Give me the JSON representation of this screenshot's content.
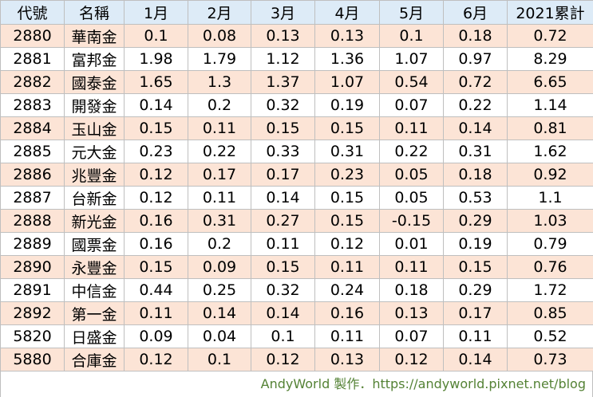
{
  "table": {
    "header": [
      "代號",
      "名稱",
      "1月",
      "2月",
      "3月",
      "4月",
      "5月",
      "6月",
      "2021累計"
    ],
    "rows": [
      [
        "2880",
        "華南金",
        "0.1",
        "0.08",
        "0.13",
        "0.13",
        "0.1",
        "0.18",
        "0.72"
      ],
      [
        "2881",
        "富邦金",
        "1.98",
        "1.79",
        "1.12",
        "1.36",
        "1.07",
        "0.97",
        "8.29"
      ],
      [
        "2882",
        "國泰金",
        "1.65",
        "1.3",
        "1.37",
        "1.07",
        "0.54",
        "0.72",
        "6.65"
      ],
      [
        "2883",
        "開發金",
        "0.14",
        "0.2",
        "0.32",
        "0.19",
        "0.07",
        "0.22",
        "1.14"
      ],
      [
        "2884",
        "玉山金",
        "0.15",
        "0.11",
        "0.15",
        "0.15",
        "0.11",
        "0.14",
        "0.81"
      ],
      [
        "2885",
        "元大金",
        "0.23",
        "0.22",
        "0.33",
        "0.31",
        "0.22",
        "0.31",
        "1.62"
      ],
      [
        "2886",
        "兆豐金",
        "0.12",
        "0.17",
        "0.17",
        "0.23",
        "0.05",
        "0.18",
        "0.92"
      ],
      [
        "2887",
        "台新金",
        "0.12",
        "0.11",
        "0.14",
        "0.15",
        "0.05",
        "0.53",
        "1.1"
      ],
      [
        "2888",
        "新光金",
        "0.16",
        "0.31",
        "0.27",
        "0.15",
        "-0.15",
        "0.29",
        "1.03"
      ],
      [
        "2889",
        "國票金",
        "0.16",
        "0.2",
        "0.11",
        "0.12",
        "0.01",
        "0.19",
        "0.79"
      ],
      [
        "2890",
        "永豐金",
        "0.15",
        "0.09",
        "0.15",
        "0.11",
        "0.11",
        "0.15",
        "0.76"
      ],
      [
        "2891",
        "中信金",
        "0.44",
        "0.25",
        "0.32",
        "0.24",
        "0.18",
        "0.29",
        "1.72"
      ],
      [
        "2892",
        "第一金",
        "0.11",
        "0.14",
        "0.14",
        "0.16",
        "0.13",
        "0.17",
        "0.85"
      ],
      [
        "5820",
        "日盛金",
        "0.09",
        "0.04",
        "0.1",
        "0.11",
        "0.07",
        "0.11",
        "0.52"
      ],
      [
        "5880",
        "合庫金",
        "0.12",
        "0.1",
        "0.12",
        "0.13",
        "0.12",
        "0.14",
        "0.73"
      ]
    ]
  },
  "footer": "AndyWorld 製作．https://andyworld.pixnet.net/blog"
}
